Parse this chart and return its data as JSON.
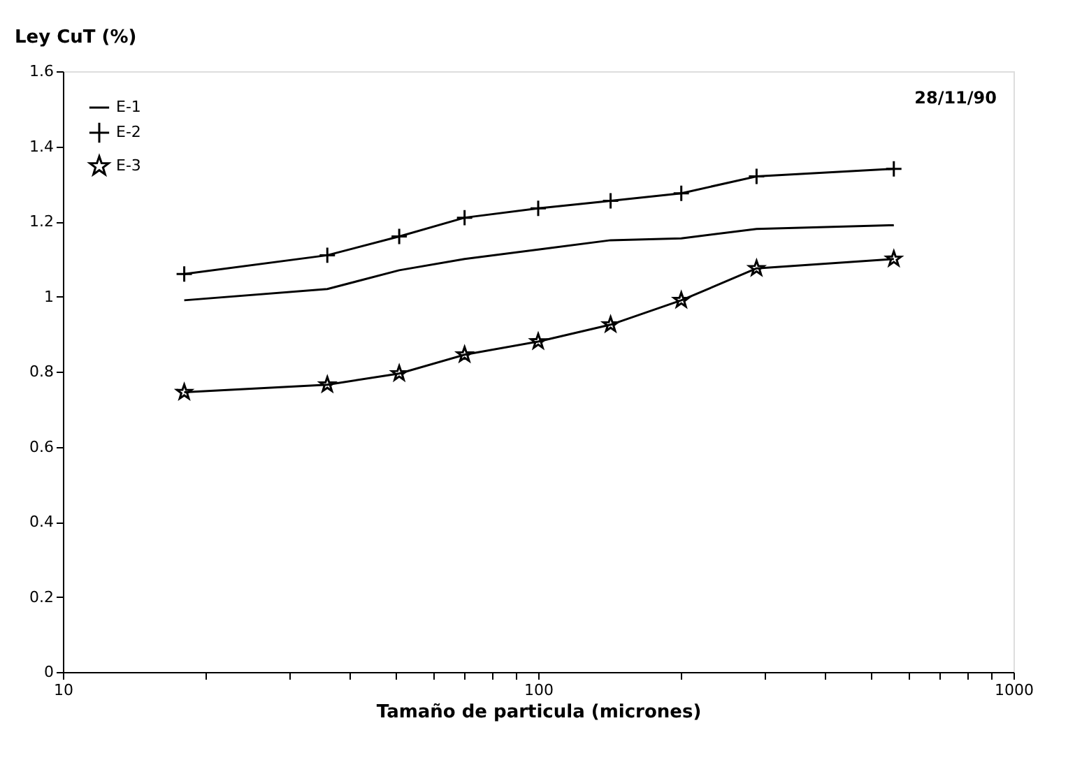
{
  "chart_data": {
    "type": "line",
    "xlabel": "Tamaño de particula (micrones)",
    "ylabel": "Ley CuT (%)",
    "x": [
      18,
      36,
      51,
      70,
      100,
      142,
      200,
      288,
      560
    ],
    "series": [
      {
        "name": "E-1",
        "color": "#000000",
        "marker": "none",
        "values": [
          0.99,
          1.02,
          1.07,
          1.1,
          1.125,
          1.15,
          1.155,
          1.18,
          1.19
        ]
      },
      {
        "name": "E-2",
        "color": "#000000",
        "marker": "cross",
        "values": [
          1.06,
          1.11,
          1.16,
          1.21,
          1.235,
          1.255,
          1.275,
          1.32,
          1.34
        ]
      },
      {
        "name": "E-3",
        "color": "#000000",
        "marker": "star",
        "values": [
          0.745,
          0.765,
          0.795,
          0.845,
          0.88,
          0.925,
          0.99,
          1.075,
          1.1
        ]
      }
    ],
    "log": "x",
    "xlim": [
      10,
      1000
    ],
    "xticks": [
      10,
      {
        "value": 20,
        "label": null
      },
      {
        "value": 30,
        "label": null
      },
      {
        "value": 40,
        "label": null
      },
      {
        "value": 50,
        "label": null
      },
      {
        "value": 60,
        "label": null
      },
      {
        "value": 70,
        "label": null
      },
      {
        "value": 80,
        "label": null
      },
      {
        "value": 90,
        "label": null
      },
      100,
      {
        "value": 200,
        "label": null
      },
      {
        "value": 300,
        "label": null
      },
      {
        "value": 400,
        "label": null
      },
      {
        "value": 500,
        "label": null
      },
      {
        "value": 600,
        "label": null
      },
      {
        "value": 700,
        "label": null
      },
      {
        "value": 800,
        "label": null
      },
      {
        "value": 900,
        "label": null
      },
      1000
    ],
    "ylim": [
      0,
      1.6
    ],
    "yticks": [
      0,
      0.2,
      0.4,
      0.6,
      0.8,
      1,
      1.2,
      1.4,
      1.6
    ],
    "grid": false,
    "legend": "top left",
    "annotations": [
      "28/11/90"
    ]
  }
}
